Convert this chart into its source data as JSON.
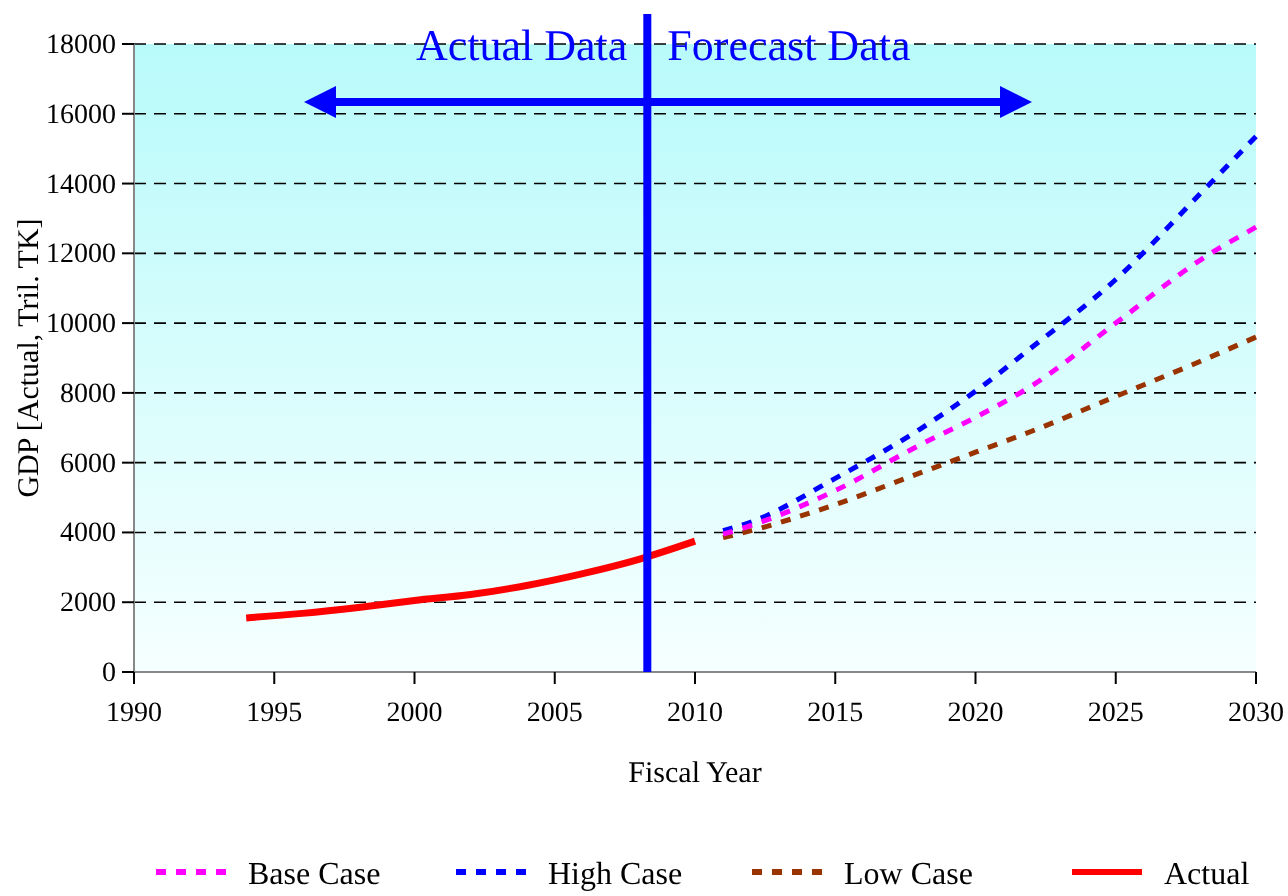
{
  "chart_data": {
    "type": "line",
    "xlabel": "Fiscal Year",
    "ylabel": "GDP [Actual, Tril. TK]",
    "xlim": [
      1990,
      2030
    ],
    "xticks": [
      1990,
      1995,
      2000,
      2005,
      2010,
      2015,
      2020,
      2025,
      2030
    ],
    "ylim": [
      0,
      18000
    ],
    "yticks": [
      0,
      2000,
      4000,
      6000,
      8000,
      10000,
      12000,
      14000,
      16000,
      18000
    ],
    "grid": "y",
    "legend": "bottom",
    "marker": "none",
    "series": [
      {
        "name": "Base Case",
        "color": "#ff00ff",
        "line_style": "dashed",
        "x": [
          2011,
          2012,
          2015,
          2018,
          2020,
          2022,
          2025,
          2028,
          2030
        ],
        "values": [
          3950,
          4200,
          5200,
          6500,
          7300,
          8200,
          10000,
          11800,
          12750
        ]
      },
      {
        "name": "High Case",
        "color": "#0000ff",
        "line_style": "dashed",
        "x": [
          2011,
          2012,
          2015,
          2018,
          2020,
          2022,
          2025,
          2028,
          2030
        ],
        "values": [
          4050,
          4300,
          5550,
          6950,
          8050,
          9300,
          11250,
          13700,
          15350
        ]
      },
      {
        "name": "Low Case",
        "color": "#993300",
        "line_style": "dashed",
        "x": [
          2011,
          2012,
          2015,
          2018,
          2020,
          2022,
          2025,
          2028,
          2030
        ],
        "values": [
          3850,
          4050,
          4800,
          5700,
          6300,
          6900,
          7900,
          8900,
          9600
        ]
      },
      {
        "name": "Actual",
        "color": "#ff0000",
        "line_style": "solid",
        "x": [
          1994,
          1996,
          1998,
          2000,
          2002,
          2004,
          2006,
          2008,
          2010
        ],
        "values": [
          1550,
          1680,
          1850,
          2050,
          2220,
          2480,
          2820,
          3230,
          3750
        ]
      }
    ],
    "ref_lines": [
      {
        "axis": "x",
        "value": 2008.3,
        "color": "#0000ff"
      }
    ],
    "annotations": [
      "Actual Data",
      "Forecast Data"
    ]
  }
}
